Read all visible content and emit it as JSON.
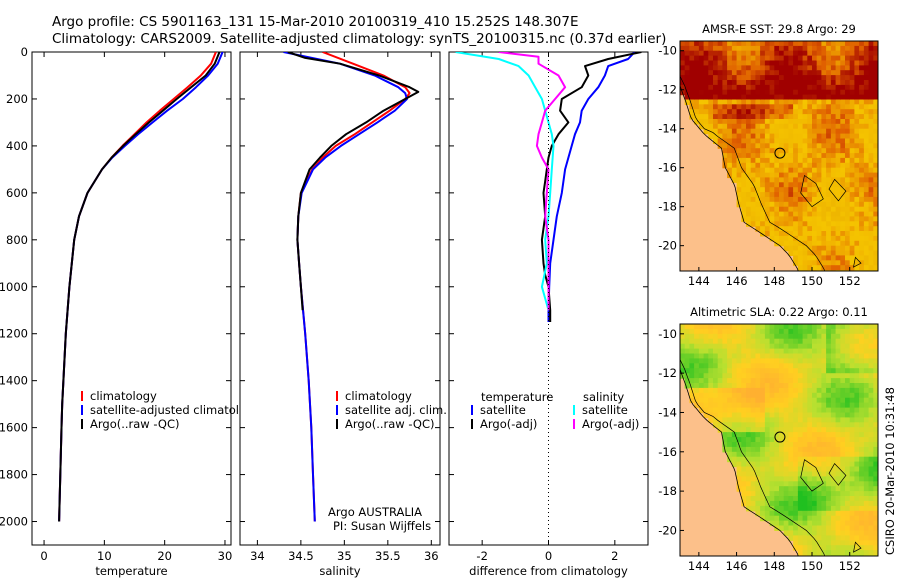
{
  "title": {
    "line1": "Argo profile: CS 5901163_131 15-Mar-2010 20100319_410 15.252S 148.307E",
    "line2": "Climatology: CARS2009. Satellite-adjusted climatology: synTS_20100315.nc (0.37d earlier)"
  },
  "footer_text": "CSIRO 20-Mar-2010 10:31:48",
  "info": {
    "line1": "Argo AUSTRALIA",
    "line2": "PI: Susan Wijffels"
  },
  "colors": {
    "red": "#ff0000",
    "blue": "#0000ff",
    "black": "#000000",
    "cyan": "#00ffff",
    "magenta": "#ff00ff"
  },
  "chart_data": [
    {
      "type": "line",
      "id": "temperature",
      "xlabel": "temperature",
      "ylabel": "",
      "xlim": [
        -2,
        31
      ],
      "ylim": [
        2100,
        0
      ],
      "xticks": [
        0,
        10,
        20,
        30
      ],
      "xticklabels": [
        "0",
        "10",
        "20",
        "30"
      ],
      "yticks": [
        0,
        200,
        400,
        600,
        800,
        1000,
        1200,
        1400,
        1600,
        1800,
        2000
      ],
      "yticklabels": [
        "0",
        "200",
        "400",
        "600",
        "800",
        "1000",
        "1200",
        "1400",
        "1600",
        "1800",
        "2000"
      ],
      "legend": [
        "climatology",
        "satellite-adjusted climatology",
        "Argo(..raw -QC)"
      ],
      "legend_colors": [
        "#ff0000",
        "#0000ff",
        "#000000"
      ],
      "legend_position": "lower-right",
      "series": [
        {
          "name": "climatology",
          "color": "#ff0000",
          "depth": [
            0,
            50,
            100,
            150,
            200,
            250,
            300,
            350,
            400,
            450,
            500,
            600,
            700,
            800,
            900,
            1000,
            1100,
            1200,
            1300,
            1400,
            1500,
            1600,
            1700,
            1800,
            1900,
            2000
          ],
          "values": [
            28.5,
            27.7,
            26.0,
            23.8,
            21.5,
            19.2,
            17.0,
            15.0,
            13.0,
            11.2,
            9.6,
            7.2,
            5.8,
            5.0,
            4.6,
            4.2,
            3.9,
            3.6,
            3.4,
            3.2,
            3.0,
            2.9,
            2.8,
            2.7,
            2.6,
            2.5
          ]
        },
        {
          "name": "satellite-adjusted climatology",
          "color": "#0000ff",
          "depth": [
            0,
            50,
            100,
            150,
            200,
            250,
            300,
            350,
            400,
            450,
            500,
            600,
            700,
            800,
            900,
            1000,
            1100,
            1200,
            1300,
            1400,
            1500,
            1600,
            1700,
            1800,
            1900,
            2000
          ],
          "values": [
            29.6,
            28.8,
            27.2,
            25.2,
            23.0,
            20.4,
            18.0,
            15.6,
            13.4,
            11.3,
            9.6,
            7.2,
            5.8,
            5.0,
            4.6,
            4.2,
            3.9,
            3.6,
            3.4,
            3.2,
            3.0,
            2.9,
            2.8,
            2.7,
            2.6,
            2.5
          ]
        },
        {
          "name": "Argo(..raw -QC)",
          "color": "#000000",
          "depth": [
            0,
            50,
            100,
            150,
            200,
            250,
            300,
            350,
            400,
            450,
            500,
            600,
            700,
            800,
            900,
            1000,
            1100,
            1200,
            1300,
            1400,
            1500,
            1600,
            1700,
            1800,
            1900,
            2000
          ],
          "values": [
            29.1,
            28.3,
            26.8,
            24.4,
            22.0,
            19.7,
            17.4,
            15.2,
            13.1,
            11.2,
            9.6,
            7.2,
            5.8,
            5.0,
            4.6,
            4.2,
            3.9,
            3.6,
            3.4,
            3.2,
            3.0,
            2.9,
            2.8,
            2.7,
            2.6,
            2.5
          ]
        }
      ]
    },
    {
      "type": "line",
      "id": "salinity",
      "xlabel": "salinity",
      "xlim": [
        33.8,
        36.1
      ],
      "ylim": [
        2100,
        0
      ],
      "xticks": [
        34,
        34.5,
        35,
        35.5,
        36
      ],
      "xticklabels": [
        "34",
        "34.5",
        "35",
        "35.5",
        "36"
      ],
      "legend": [
        "climatology",
        "satellite adj. clim.",
        "Argo(..raw -QC)"
      ],
      "legend_colors": [
        "#ff0000",
        "#0000ff",
        "#000000"
      ],
      "legend_position": "lower-right",
      "series": [
        {
          "name": "climatology",
          "color": "#ff0000",
          "depth": [
            0,
            50,
            100,
            150,
            175,
            200,
            250,
            300,
            350,
            400,
            450,
            500,
            600,
            700,
            800,
            900,
            1000,
            1200,
            1400,
            1600,
            1800,
            2000
          ],
          "values": [
            34.75,
            35.1,
            35.45,
            35.7,
            35.75,
            35.7,
            35.52,
            35.32,
            35.12,
            34.9,
            34.75,
            34.63,
            34.5,
            34.47,
            34.46,
            34.48,
            34.5,
            34.55,
            34.59,
            34.62,
            34.64,
            34.66
          ]
        },
        {
          "name": "satellite adj. clim.",
          "color": "#0000ff",
          "depth": [
            0,
            50,
            100,
            150,
            175,
            200,
            250,
            300,
            350,
            400,
            450,
            500,
            600,
            700,
            800,
            900,
            1000,
            1200,
            1400,
            1600,
            1800,
            2000
          ],
          "values": [
            34.3,
            34.95,
            35.35,
            35.62,
            35.7,
            35.72,
            35.58,
            35.38,
            35.17,
            34.96,
            34.78,
            34.64,
            34.51,
            34.47,
            34.46,
            34.48,
            34.5,
            34.55,
            34.59,
            34.62,
            34.64,
            34.66
          ]
        },
        {
          "name": "Argo(..raw -QC)",
          "color": "#000000",
          "depth": [
            0,
            25,
            50,
            100,
            150,
            170,
            200,
            250,
            300,
            350,
            400,
            450,
            500,
            600,
            700,
            800,
            900,
            1000,
            1100
          ],
          "values": [
            34.35,
            34.55,
            34.95,
            35.4,
            35.75,
            35.85,
            35.7,
            35.45,
            35.25,
            35.02,
            34.85,
            34.72,
            34.6,
            34.5,
            34.47,
            34.46,
            34.48,
            34.5,
            34.52
          ]
        }
      ]
    },
    {
      "type": "line",
      "id": "difference",
      "xlabel": "difference from climatology",
      "xlim": [
        -3,
        3
      ],
      "ylim": [
        2100,
        0
      ],
      "xticks": [
        -2,
        0,
        2
      ],
      "xticklabels": [
        "-2",
        "0",
        "2"
      ],
      "legend": [
        "temperature",
        "satellite",
        "Argo(-adj)",
        "salinity",
        "satellite",
        "Argo(-adj)"
      ],
      "legend_colors": [
        "#0000ff",
        "#000000",
        "#00ffff",
        "#ff00ff"
      ],
      "series": [
        {
          "name": "temperature satellite",
          "color": "#0000ff",
          "depth": [
            0,
            30,
            60,
            100,
            150,
            200,
            250,
            300,
            350,
            400,
            450,
            500,
            600,
            700,
            800,
            900,
            1000,
            1100,
            1150
          ],
          "values": [
            2.6,
            2.4,
            1.8,
            1.7,
            1.5,
            1.2,
            1.0,
            0.95,
            0.8,
            0.7,
            0.6,
            0.5,
            0.4,
            0.25,
            0.15,
            0.05,
            0.02,
            0.0,
            0.0
          ]
        },
        {
          "name": "temperature Argo(-adj)",
          "color": "#000000",
          "depth": [
            0,
            30,
            60,
            100,
            150,
            200,
            250,
            300,
            350,
            400,
            450,
            500,
            550,
            600,
            700,
            800,
            900,
            950,
            1000,
            1100,
            1150
          ],
          "values": [
            2.8,
            1.8,
            1.1,
            1.2,
            1.0,
            0.4,
            0.35,
            0.6,
            0.3,
            0.1,
            0.0,
            -0.05,
            -0.1,
            -0.15,
            -0.1,
            -0.2,
            -0.15,
            -0.1,
            0.0,
            0.05,
            0.05
          ]
        },
        {
          "name": "salinity satellite",
          "color": "#00ffff",
          "depth": [
            0,
            30,
            60,
            100,
            150,
            200,
            250,
            300,
            350,
            400,
            500,
            600,
            700,
            800,
            900,
            1000,
            1050,
            1100
          ],
          "values": [
            -2.8,
            -1.5,
            -0.9,
            -0.6,
            -0.4,
            -0.2,
            -0.1,
            0.0,
            0.1,
            0.15,
            0.1,
            0.05,
            0.0,
            -0.1,
            -0.05,
            -0.2,
            -0.1,
            0.0
          ]
        },
        {
          "name": "salinity Argo(-adj)",
          "color": "#ff00ff",
          "depth": [
            0,
            20,
            50,
            100,
            150,
            200,
            250,
            300,
            350,
            400,
            450,
            500,
            600,
            700,
            800,
            900,
            1000,
            1100
          ],
          "values": [
            -1.5,
            -0.3,
            -0.3,
            0.3,
            0.5,
            0.2,
            -0.1,
            -0.2,
            -0.3,
            -0.35,
            -0.2,
            0.0,
            -0.05,
            -0.1,
            0.0,
            0.0,
            0.0,
            0.0
          ]
        }
      ]
    },
    {
      "type": "heatmap",
      "id": "sst-map",
      "title": "AMSR-E SST: 29.8  Argo: 29",
      "xlim": [
        143,
        153.5
      ],
      "ylim": [
        -21.3,
        -9.5
      ],
      "xticks": [
        144,
        146,
        148,
        150,
        152
      ],
      "xticklabels": [
        "144",
        "146",
        "148",
        "150",
        "152"
      ],
      "yticks": [
        -10,
        -12,
        -14,
        -16,
        -18,
        -20
      ],
      "yticklabels": [
        "-10",
        "-12",
        "-14",
        "-16",
        "-18",
        "-20"
      ],
      "marker": {
        "lon": 148.3,
        "lat": -15.25
      }
    },
    {
      "type": "heatmap",
      "id": "sla-map",
      "title": "Altimetric SLA: 0.22  Argo: 0.11",
      "xlim": [
        143,
        153.5
      ],
      "ylim": [
        -21.3,
        -9.5
      ],
      "xticks": [
        144,
        146,
        148,
        150,
        152
      ],
      "xticklabels": [
        "144",
        "146",
        "148",
        "150",
        "152"
      ],
      "yticks": [
        -10,
        -12,
        -14,
        -16,
        -18,
        -20
      ],
      "yticklabels": [
        "-10",
        "-12",
        "-14",
        "-16",
        "-18",
        "-20"
      ],
      "marker": {
        "lon": 148.3,
        "lat": -15.25
      }
    }
  ]
}
